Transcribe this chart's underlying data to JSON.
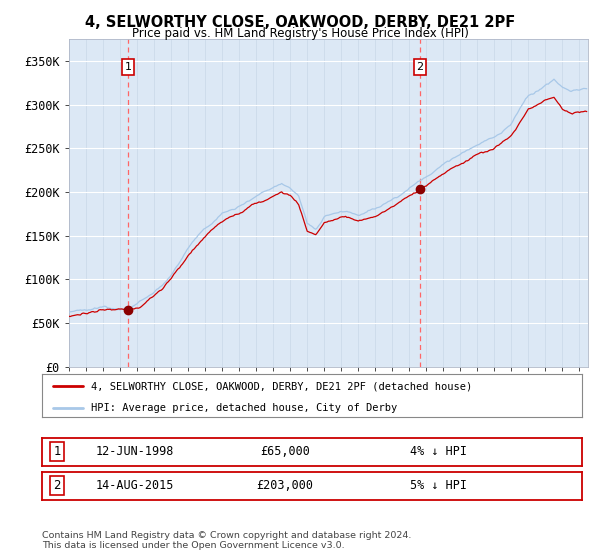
{
  "title": "4, SELWORTHY CLOSE, OAKWOOD, DERBY, DE21 2PF",
  "subtitle": "Price paid vs. HM Land Registry's House Price Index (HPI)",
  "sale1_date": "12-JUN-1998",
  "sale1_price": 65000,
  "sale1_label": "4% ↓ HPI",
  "sale2_date": "14-AUG-2015",
  "sale2_price": 203000,
  "sale2_label": "5% ↓ HPI",
  "legend_property": "4, SELWORTHY CLOSE, OAKWOOD, DERBY, DE21 2PF (detached house)",
  "legend_hpi": "HPI: Average price, detached house, City of Derby",
  "footer": "Contains HM Land Registry data © Crown copyright and database right 2024.\nThis data is licensed under the Open Government Licence v3.0.",
  "hpi_color": "#a8c8e8",
  "property_color": "#CC0000",
  "marker_color": "#8B0000",
  "dashed_line_color": "#FF6666",
  "plot_bg": "#dce8f5",
  "ylim": [
    0,
    375000
  ],
  "yticks": [
    0,
    50000,
    100000,
    150000,
    200000,
    250000,
    300000,
    350000
  ],
  "ytick_labels": [
    "£0",
    "£50K",
    "£100K",
    "£150K",
    "£200K",
    "£250K",
    "£300K",
    "£350K"
  ],
  "start_year": 1995.0,
  "end_year": 2025.5,
  "sale1_year": 1998.458,
  "sale2_year": 2015.625
}
